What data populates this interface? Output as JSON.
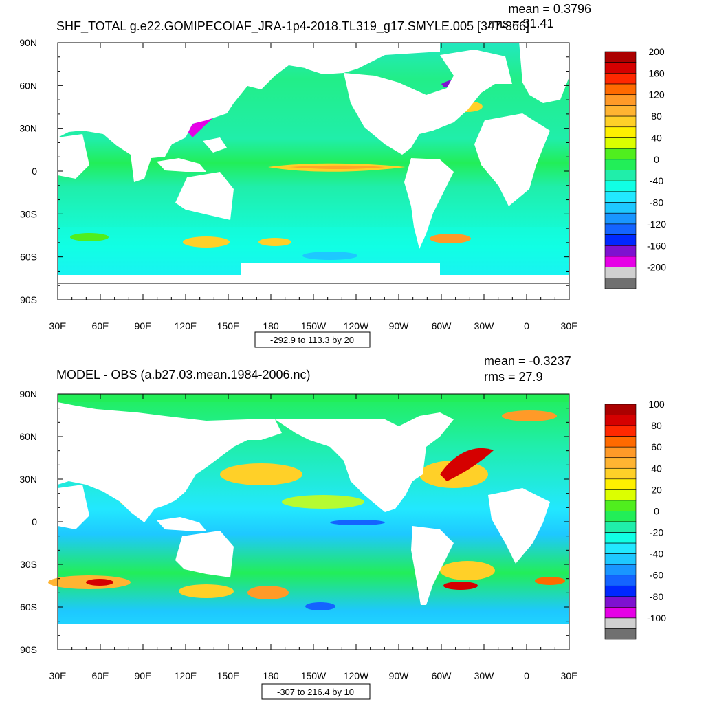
{
  "chart_data": [
    {
      "type": "heatmap",
      "title": "SHF_TOTAL g.e22.GOMIPECOIAF_JRA-1p4-2018.TL319_g17.SMYLE.005 [347-366]",
      "mean_label": "mean = 0.3796",
      "rms_label": "rms = 31.41",
      "mean": 0.3796,
      "rms": 31.41,
      "contour_info": "-292.9 to 113.3 by 20",
      "x_tick_labels": [
        "30E",
        "60E",
        "90E",
        "120E",
        "150E",
        "180",
        "150W",
        "120W",
        "90W",
        "60W",
        "30W",
        "0",
        "30E"
      ],
      "y_tick_labels": [
        "90N",
        "60N",
        "30N",
        "0",
        "30S",
        "60S",
        "90S"
      ],
      "colorbar_labels": [
        "200",
        "160",
        "120",
        "80",
        "40",
        "0",
        "-40",
        "-80",
        "-120",
        "-160",
        "-200"
      ],
      "colorbar_range": [
        -200,
        200
      ],
      "colorbar_colors": [
        "#ab0000",
        "#d50000",
        "#ff2800",
        "#ff6a00",
        "#ff9a28",
        "#ffb432",
        "#ffd028",
        "#fff000",
        "#dcff00",
        "#50ee1e",
        "#22ee58",
        "#20eeaa",
        "#11ffe4",
        "#22e8ff",
        "#1ec8ff",
        "#1996ff",
        "#1464ff",
        "#0028ff",
        "#7e11d0",
        "#e600e6",
        "#d0d0d0",
        "#707070"
      ]
    },
    {
      "type": "heatmap",
      "title": "MODEL - OBS (a.b27.03.mean.1984-2006.nc)",
      "mean_label": "mean = -0.3237",
      "rms_label": "rms = 27.9",
      "mean": -0.3237,
      "rms": 27.9,
      "contour_info": "-307 to 216.4 by 10",
      "x_tick_labels": [
        "30E",
        "60E",
        "90E",
        "120E",
        "150E",
        "180",
        "150W",
        "120W",
        "90W",
        "60W",
        "30W",
        "0",
        "30E"
      ],
      "y_tick_labels": [
        "90N",
        "60N",
        "30N",
        "0",
        "30S",
        "60S",
        "90S"
      ],
      "colorbar_labels": [
        "100",
        "80",
        "60",
        "40",
        "20",
        "0",
        "-20",
        "-40",
        "-60",
        "-80",
        "-100"
      ],
      "colorbar_range": [
        -100,
        100
      ],
      "colorbar_colors": [
        "#ab0000",
        "#d50000",
        "#ff2800",
        "#ff6a00",
        "#ff9a28",
        "#ffb432",
        "#ffd028",
        "#fff000",
        "#dcff00",
        "#50ee1e",
        "#22ee58",
        "#20eeaa",
        "#11ffe4",
        "#22e8ff",
        "#1ec8ff",
        "#1996ff",
        "#1464ff",
        "#0028ff",
        "#7e11d0",
        "#e600e6",
        "#d0d0d0",
        "#707070"
      ]
    }
  ]
}
